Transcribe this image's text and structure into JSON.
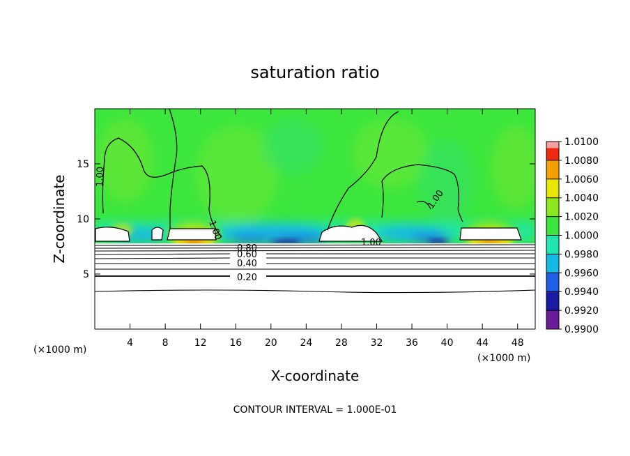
{
  "chart_data": {
    "type": "heatmap",
    "title": "saturation ratio",
    "xlabel": "X-coordinate",
    "ylabel": "Z-coordinate",
    "x_unit_left": "(×1000 m)",
    "x_unit_right": "(×1000 m)",
    "footer": "CONTOUR INTERVAL = 1.000E-01",
    "xlim": [
      0,
      50
    ],
    "ylim": [
      0,
      20
    ],
    "x_ticks": [
      4,
      8,
      12,
      16,
      20,
      24,
      28,
      32,
      36,
      40,
      44,
      48
    ],
    "y_ticks": [
      5,
      10,
      15
    ],
    "colorbar": {
      "levels": [
        "0.9900",
        "0.9920",
        "0.9940",
        "0.9960",
        "0.9980",
        "1.0000",
        "1.0020",
        "1.0040",
        "1.0060",
        "1.0080",
        "1.0100"
      ],
      "colors": [
        "#6a1b9a",
        "#1a1aa6",
        "#1f5fe6",
        "#16b8e6",
        "#20e6b0",
        "#3ce63c",
        "#8ce620",
        "#e6e600",
        "#f5a000",
        "#ef2a10",
        "#f4a0a0"
      ]
    },
    "contour_labels": [
      "1.00",
      "1.00",
      "1.00",
      "1.00",
      "0.80",
      "0.60",
      "0.40",
      "0.20"
    ],
    "colors": {
      "background_field": "#3ce63c"
    }
  }
}
